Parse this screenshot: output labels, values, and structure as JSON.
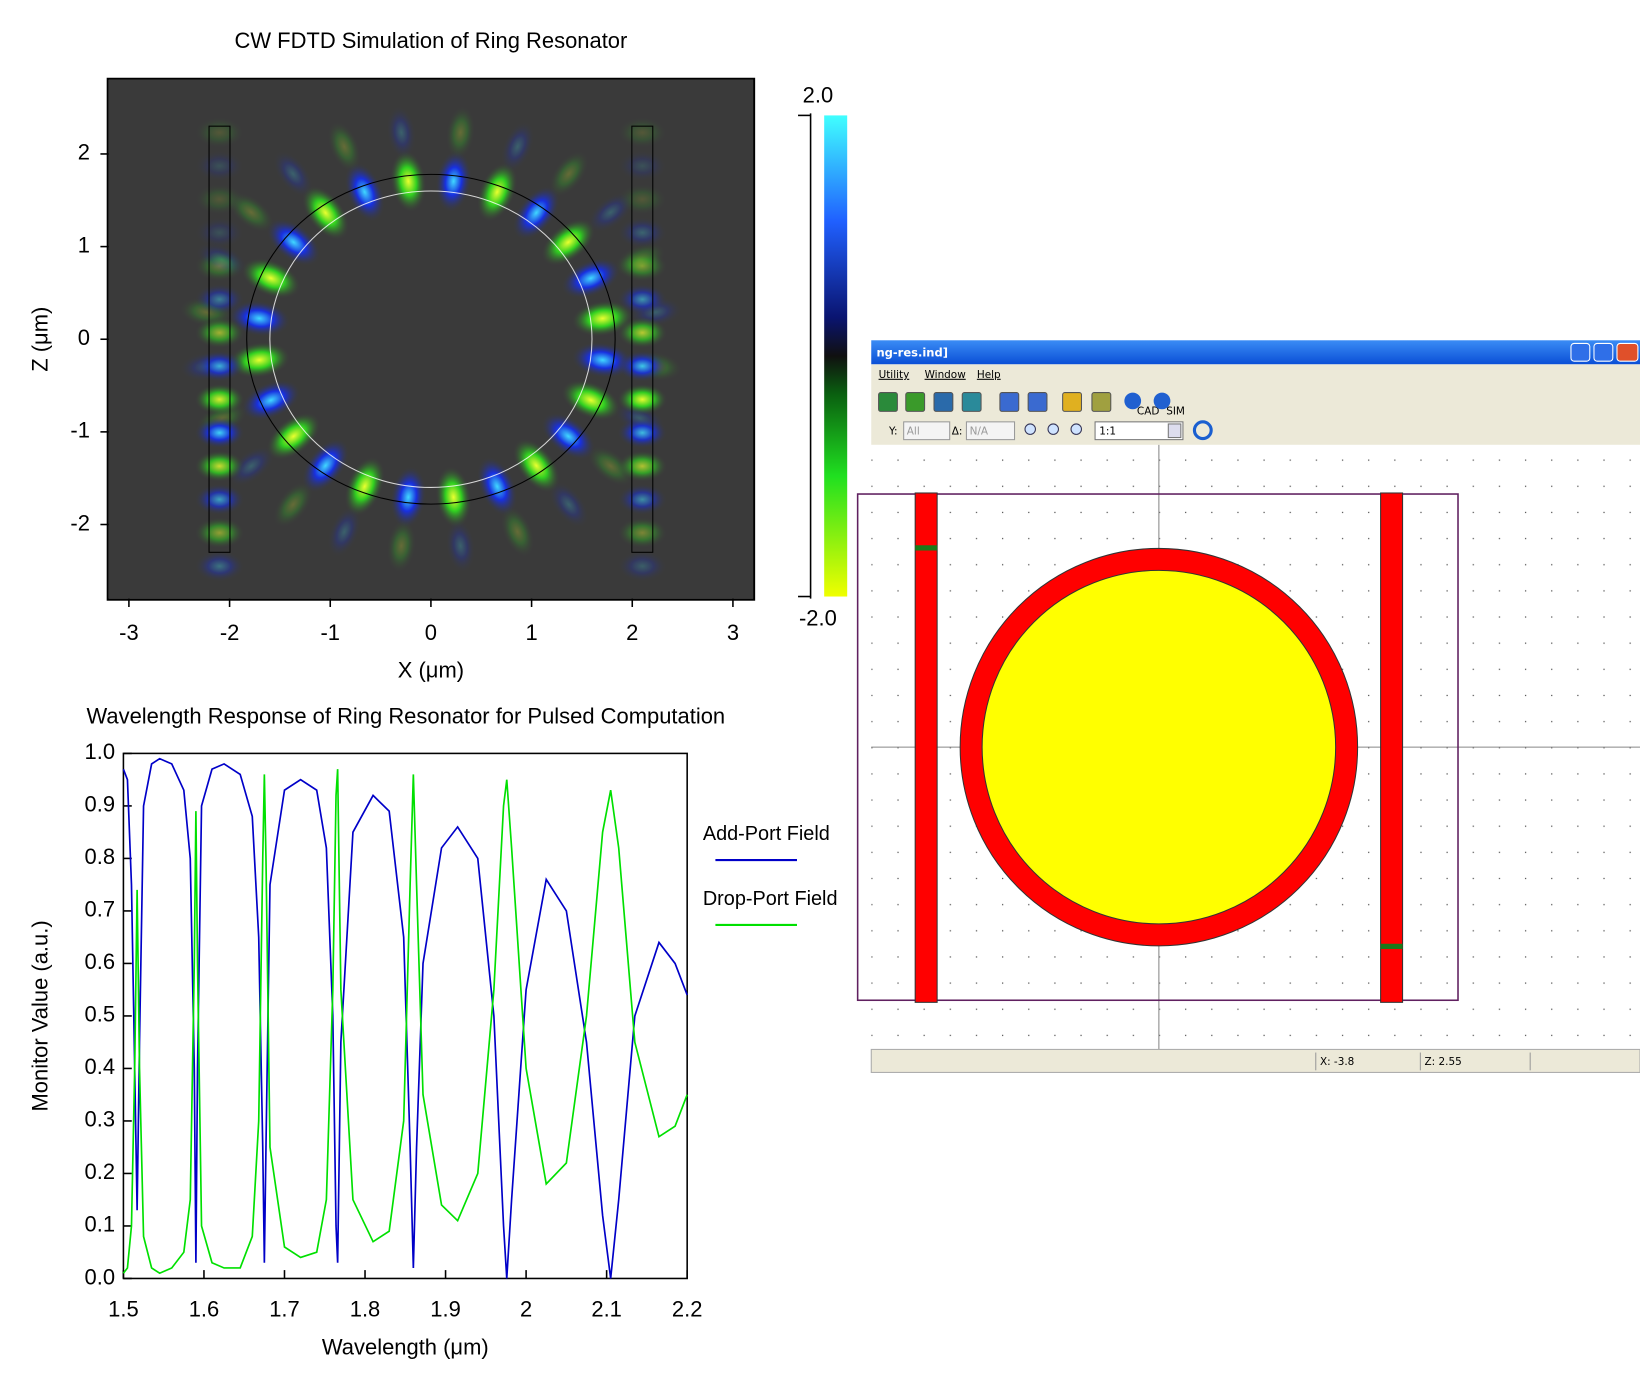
{
  "chart_data": [
    {
      "type": "heatmap",
      "title": "CW FDTD Simulation of Ring Resonator",
      "x_label": "X (μm)",
      "y_label": "Z (μm)",
      "xlim": [
        -3.2,
        3.2
      ],
      "ylim": [
        -2.8,
        2.8
      ],
      "xticks": [
        -3,
        -2,
        -1,
        0,
        1,
        2,
        3
      ],
      "yticks": [
        -2,
        -1,
        0,
        1,
        2
      ],
      "colorbar": {
        "clim": [
          -2,
          2
        ],
        "ticks": [
          {
            "value": 2,
            "label": "2.0"
          },
          {
            "value": -2,
            "label": "-2.0"
          }
        ]
      }
    },
    {
      "type": "line",
      "title": "Wavelength Response of Ring Resonator for Pulsed Computation",
      "x_label": "Wavelength (μm)",
      "y_label": "Monitor Value (a.u.)",
      "x": [
        1.5,
        1.505,
        1.51,
        1.514,
        1.517,
        1.52,
        1.525,
        1.535,
        1.545,
        1.56,
        1.575,
        1.583,
        1.588,
        1.59,
        1.592,
        1.597,
        1.61,
        1.625,
        1.645,
        1.66,
        1.668,
        1.673,
        1.675,
        1.677,
        1.682,
        1.7,
        1.72,
        1.74,
        1.752,
        1.76,
        1.764,
        1.766,
        1.77,
        1.785,
        1.81,
        1.83,
        1.848,
        1.856,
        1.86,
        1.864,
        1.872,
        1.895,
        1.915,
        1.94,
        1.96,
        1.972,
        1.976,
        1.982,
        2.0,
        2.025,
        2.05,
        2.075,
        2.095,
        2.105,
        2.115,
        2.135,
        2.165,
        2.185,
        2.2
      ],
      "series": [
        {
          "name": "Add-Port Field",
          "color": "#0000c8",
          "values": [
            0.97,
            0.95,
            0.75,
            0.4,
            0.13,
            0.45,
            0.9,
            0.98,
            0.99,
            0.98,
            0.93,
            0.8,
            0.4,
            0.03,
            0.4,
            0.9,
            0.97,
            0.98,
            0.96,
            0.88,
            0.65,
            0.25,
            0.03,
            0.25,
            0.75,
            0.93,
            0.95,
            0.93,
            0.82,
            0.5,
            0.1,
            0.03,
            0.45,
            0.85,
            0.92,
            0.89,
            0.65,
            0.25,
            0.02,
            0.25,
            0.6,
            0.82,
            0.86,
            0.8,
            0.5,
            0.1,
            0,
            0.15,
            0.55,
            0.76,
            0.7,
            0.45,
            0.12,
            0,
            0.15,
            0.5,
            0.64,
            0.6,
            0.54
          ]
        },
        {
          "name": "Drop-Port Field",
          "color": "#00e000",
          "values": [
            0.01,
            0.02,
            0.1,
            0.4,
            0.74,
            0.4,
            0.08,
            0.02,
            0.01,
            0.02,
            0.05,
            0.15,
            0.6,
            0.89,
            0.6,
            0.1,
            0.03,
            0.02,
            0.02,
            0.08,
            0.3,
            0.8,
            0.96,
            0.8,
            0.25,
            0.06,
            0.04,
            0.05,
            0.15,
            0.55,
            0.92,
            0.97,
            0.55,
            0.15,
            0.07,
            0.09,
            0.3,
            0.75,
            0.96,
            0.75,
            0.35,
            0.14,
            0.11,
            0.2,
            0.55,
            0.9,
            0.95,
            0.82,
            0.4,
            0.18,
            0.22,
            0.5,
            0.85,
            0.93,
            0.82,
            0.45,
            0.27,
            0.29,
            0.35
          ]
        }
      ],
      "xlim": [
        1.5,
        2.2
      ],
      "ylim": [
        0,
        1
      ],
      "xticks": [
        1.5,
        1.6,
        1.7,
        1.8,
        1.9,
        2.0,
        2.1,
        2.2
      ],
      "yticks": [
        {
          "value": 0,
          "label": "0.0"
        },
        0.1,
        0.2,
        0.3,
        0.4,
        0.5,
        0.6,
        0.7,
        0.8,
        0.9,
        {
          "value": 1,
          "label": "1.0"
        }
      ],
      "legend": "right"
    }
  ],
  "cad_window": {
    "title": "ng-res.ind]",
    "menu": [
      "Utility",
      "Window",
      "Help"
    ],
    "toolbar": [
      "Y:",
      "All",
      "Δ:",
      "N/A",
      "1:1"
    ],
    "icon_labels": [
      "CAD",
      "SIM"
    ],
    "status": [
      "X: -3.8",
      "Z: 2.55"
    ]
  }
}
